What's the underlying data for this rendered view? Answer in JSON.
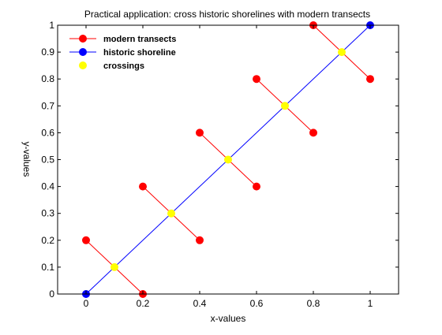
{
  "chart_data": {
    "type": "scatter",
    "title": "Practical application: cross historic shorelines with modern transects",
    "xlabel": "x-values",
    "ylabel": "y-values",
    "xlim": [
      -0.1,
      1.1
    ],
    "ylim": [
      0,
      1
    ],
    "x_ticks": [
      "0",
      "0.2",
      "0.4",
      "0.6",
      "0.8",
      "1"
    ],
    "y_ticks": [
      "0",
      "0.1",
      "0.2",
      "0.3",
      "0.4",
      "0.5",
      "0.6",
      "0.7",
      "0.8",
      "0.9",
      "1"
    ],
    "grid": false,
    "legend_position": "top-left",
    "series": [
      {
        "name": "modern transects",
        "style": "line-marker",
        "color": "#ff0000",
        "segments": [
          [
            [
              0,
              0.2
            ],
            [
              0.2,
              0
            ]
          ],
          [
            [
              0.2,
              0.4
            ],
            [
              0.4,
              0.2
            ]
          ],
          [
            [
              0.4,
              0.6
            ],
            [
              0.6,
              0.4
            ]
          ],
          [
            [
              0.6,
              0.8
            ],
            [
              0.8,
              0.6
            ]
          ],
          [
            [
              0.8,
              1.0
            ],
            [
              1.0,
              0.8
            ]
          ]
        ]
      },
      {
        "name": "historic shoreline",
        "style": "line-marker",
        "color": "#0000ff",
        "segments": [
          [
            [
              0,
              0
            ],
            [
              1,
              1
            ]
          ]
        ]
      },
      {
        "name": "crossings",
        "style": "marker",
        "color": "#ffff00",
        "points": [
          [
            0.1,
            0.1
          ],
          [
            0.3,
            0.3
          ],
          [
            0.5,
            0.5
          ],
          [
            0.7,
            0.7
          ],
          [
            0.9,
            0.9
          ]
        ]
      }
    ]
  }
}
